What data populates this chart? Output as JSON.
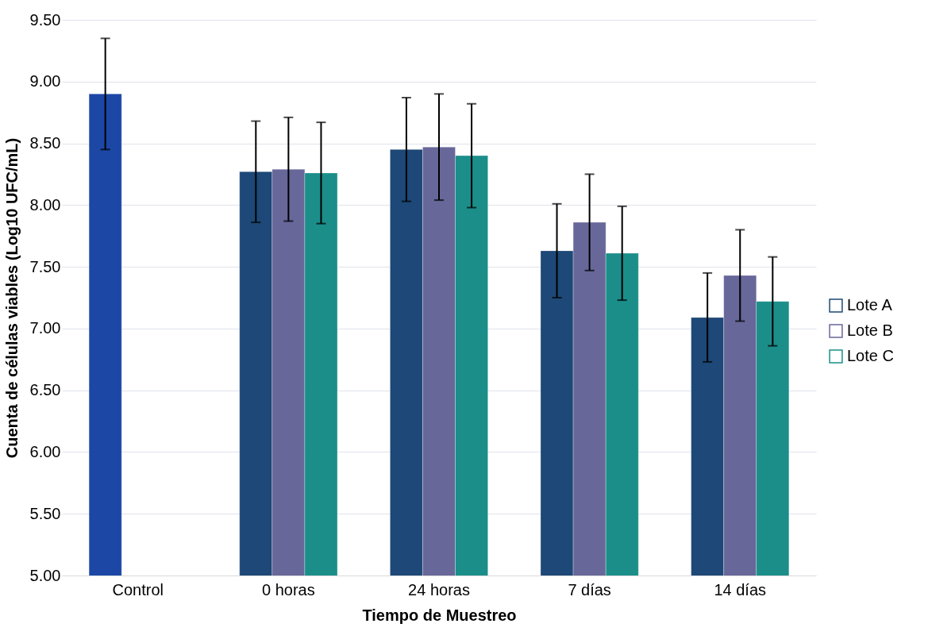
{
  "chart_data": {
    "type": "bar",
    "xlabel": "Tiempo de Muestreo",
    "ylabel": "Cuenta de células viables (Log10 UFC/mL)",
    "categories": [
      "Control",
      "0 horas",
      "24 horas",
      "7 días",
      "14 días"
    ],
    "series": [
      {
        "name": "Lote A",
        "color": "#1d4877",
        "colors": [
          "#1c47a5",
          "#1d4877",
          "#1d4877",
          "#1d4877",
          "#1d4877"
        ],
        "values": [
          8.9,
          8.27,
          8.45,
          7.63,
          7.09
        ],
        "errors": [
          0.45,
          0.41,
          0.42,
          0.38,
          0.36
        ]
      },
      {
        "name": "Lote B",
        "color": "#67679a",
        "values": [
          null,
          8.29,
          8.47,
          7.86,
          7.43
        ],
        "errors": [
          null,
          0.42,
          0.43,
          0.39,
          0.37
        ]
      },
      {
        "name": "Lote C",
        "color": "#1b8e8a",
        "values": [
          null,
          8.26,
          8.4,
          7.61,
          7.22
        ],
        "errors": [
          null,
          0.41,
          0.42,
          0.38,
          0.36
        ]
      }
    ],
    "ylim": [
      5.0,
      9.5
    ],
    "yticks": [
      {
        "value": 5.0,
        "label": "5.00"
      },
      {
        "value": 5.5,
        "label": "5.50"
      },
      {
        "value": 6.0,
        "label": "6.00"
      },
      {
        "value": 6.5,
        "label": "6.50"
      },
      {
        "value": 7.0,
        "label": "7.00"
      },
      {
        "value": 7.5,
        "label": "7.50"
      },
      {
        "value": 8.0,
        "label": "8.00"
      },
      {
        "value": 8.5,
        "label": "8.50"
      },
      {
        "value": 9.0,
        "label": "9.00"
      },
      {
        "value": 9.5,
        "label": "9.50"
      }
    ],
    "grid": "y",
    "legend": "right"
  }
}
